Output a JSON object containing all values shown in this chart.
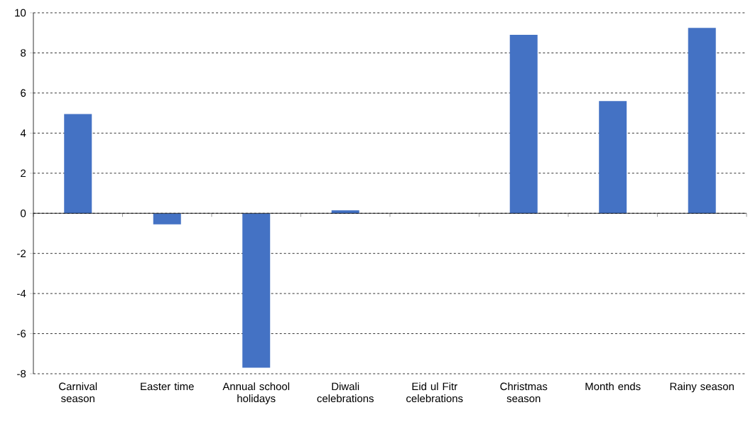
{
  "chart_data": {
    "type": "bar",
    "categories": [
      "Carnival season",
      "Easter time",
      "Annual school holidays",
      "Diwali celebrations",
      "Eid ul Fitr celebrations",
      "Christmas season",
      "Month ends",
      "Rainy season"
    ],
    "values": [
      4.95,
      -0.55,
      -7.7,
      0.15,
      0,
      8.9,
      5.6,
      9.25
    ],
    "color": "#4472c4",
    "ylim": [
      -8,
      10
    ],
    "yticks": [
      -8,
      -6,
      -4,
      -2,
      0,
      2,
      4,
      6,
      8,
      10
    ],
    "grid": "y"
  }
}
